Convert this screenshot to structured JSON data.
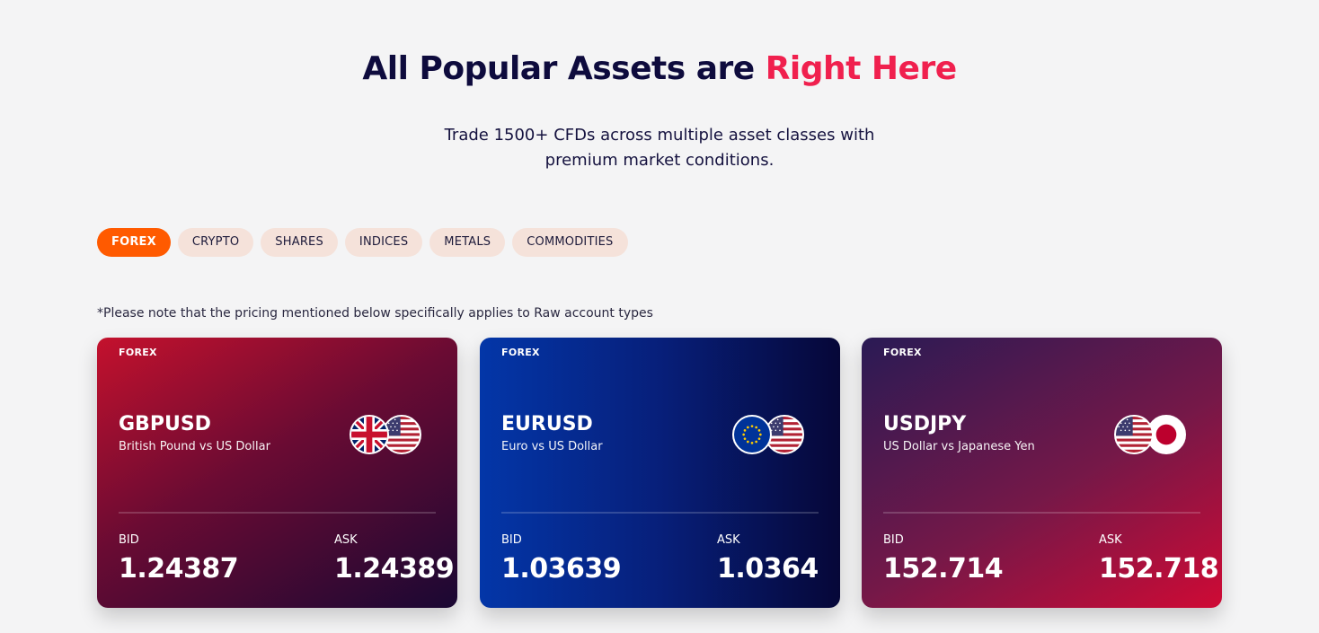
{
  "hero": {
    "title_main": "All Popular Assets are",
    "title_accent": "Right Here",
    "subtitle_line1": "Trade 1500+ CFDs across multiple asset classes with",
    "subtitle_line2": "premium market conditions."
  },
  "tabs": [
    {
      "label": "FOREX",
      "active": true
    },
    {
      "label": "CRYPTO",
      "active": false
    },
    {
      "label": "SHARES",
      "active": false
    },
    {
      "label": "INDICES",
      "active": false
    },
    {
      "label": "METALS",
      "active": false
    },
    {
      "label": "COMMODITIES",
      "active": false
    }
  ],
  "note": "*Please note that the pricing mentioned below specifically applies to Raw account types",
  "cards": [
    {
      "category": "FOREX",
      "pair": "GBPUSD",
      "description": "British Pound vs US Dollar",
      "bid_label": "BID",
      "bid": "1.24387",
      "ask_label": "ASK",
      "ask": "1.24389",
      "flags": [
        "uk-flag-icon",
        "us-flag-icon"
      ]
    },
    {
      "category": "FOREX",
      "pair": "EURUSD",
      "description": "Euro vs US Dollar",
      "bid_label": "BID",
      "bid": "1.03639",
      "ask_label": "ASK",
      "ask": "1.0364",
      "flags": [
        "eu-flag-icon",
        "us-flag-icon"
      ]
    },
    {
      "category": "FOREX",
      "pair": "USDJPY",
      "description": "US Dollar vs Japanese Yen",
      "bid_label": "BID",
      "bid": "152.714",
      "ask_label": "ASK",
      "ask": "152.718",
      "flags": [
        "us-flag-icon",
        "jp-flag-icon"
      ]
    }
  ],
  "colors": {
    "accent_title": "#f0204e",
    "tab_active": "#ff5a00",
    "tab_inactive": "#f5e2da"
  }
}
